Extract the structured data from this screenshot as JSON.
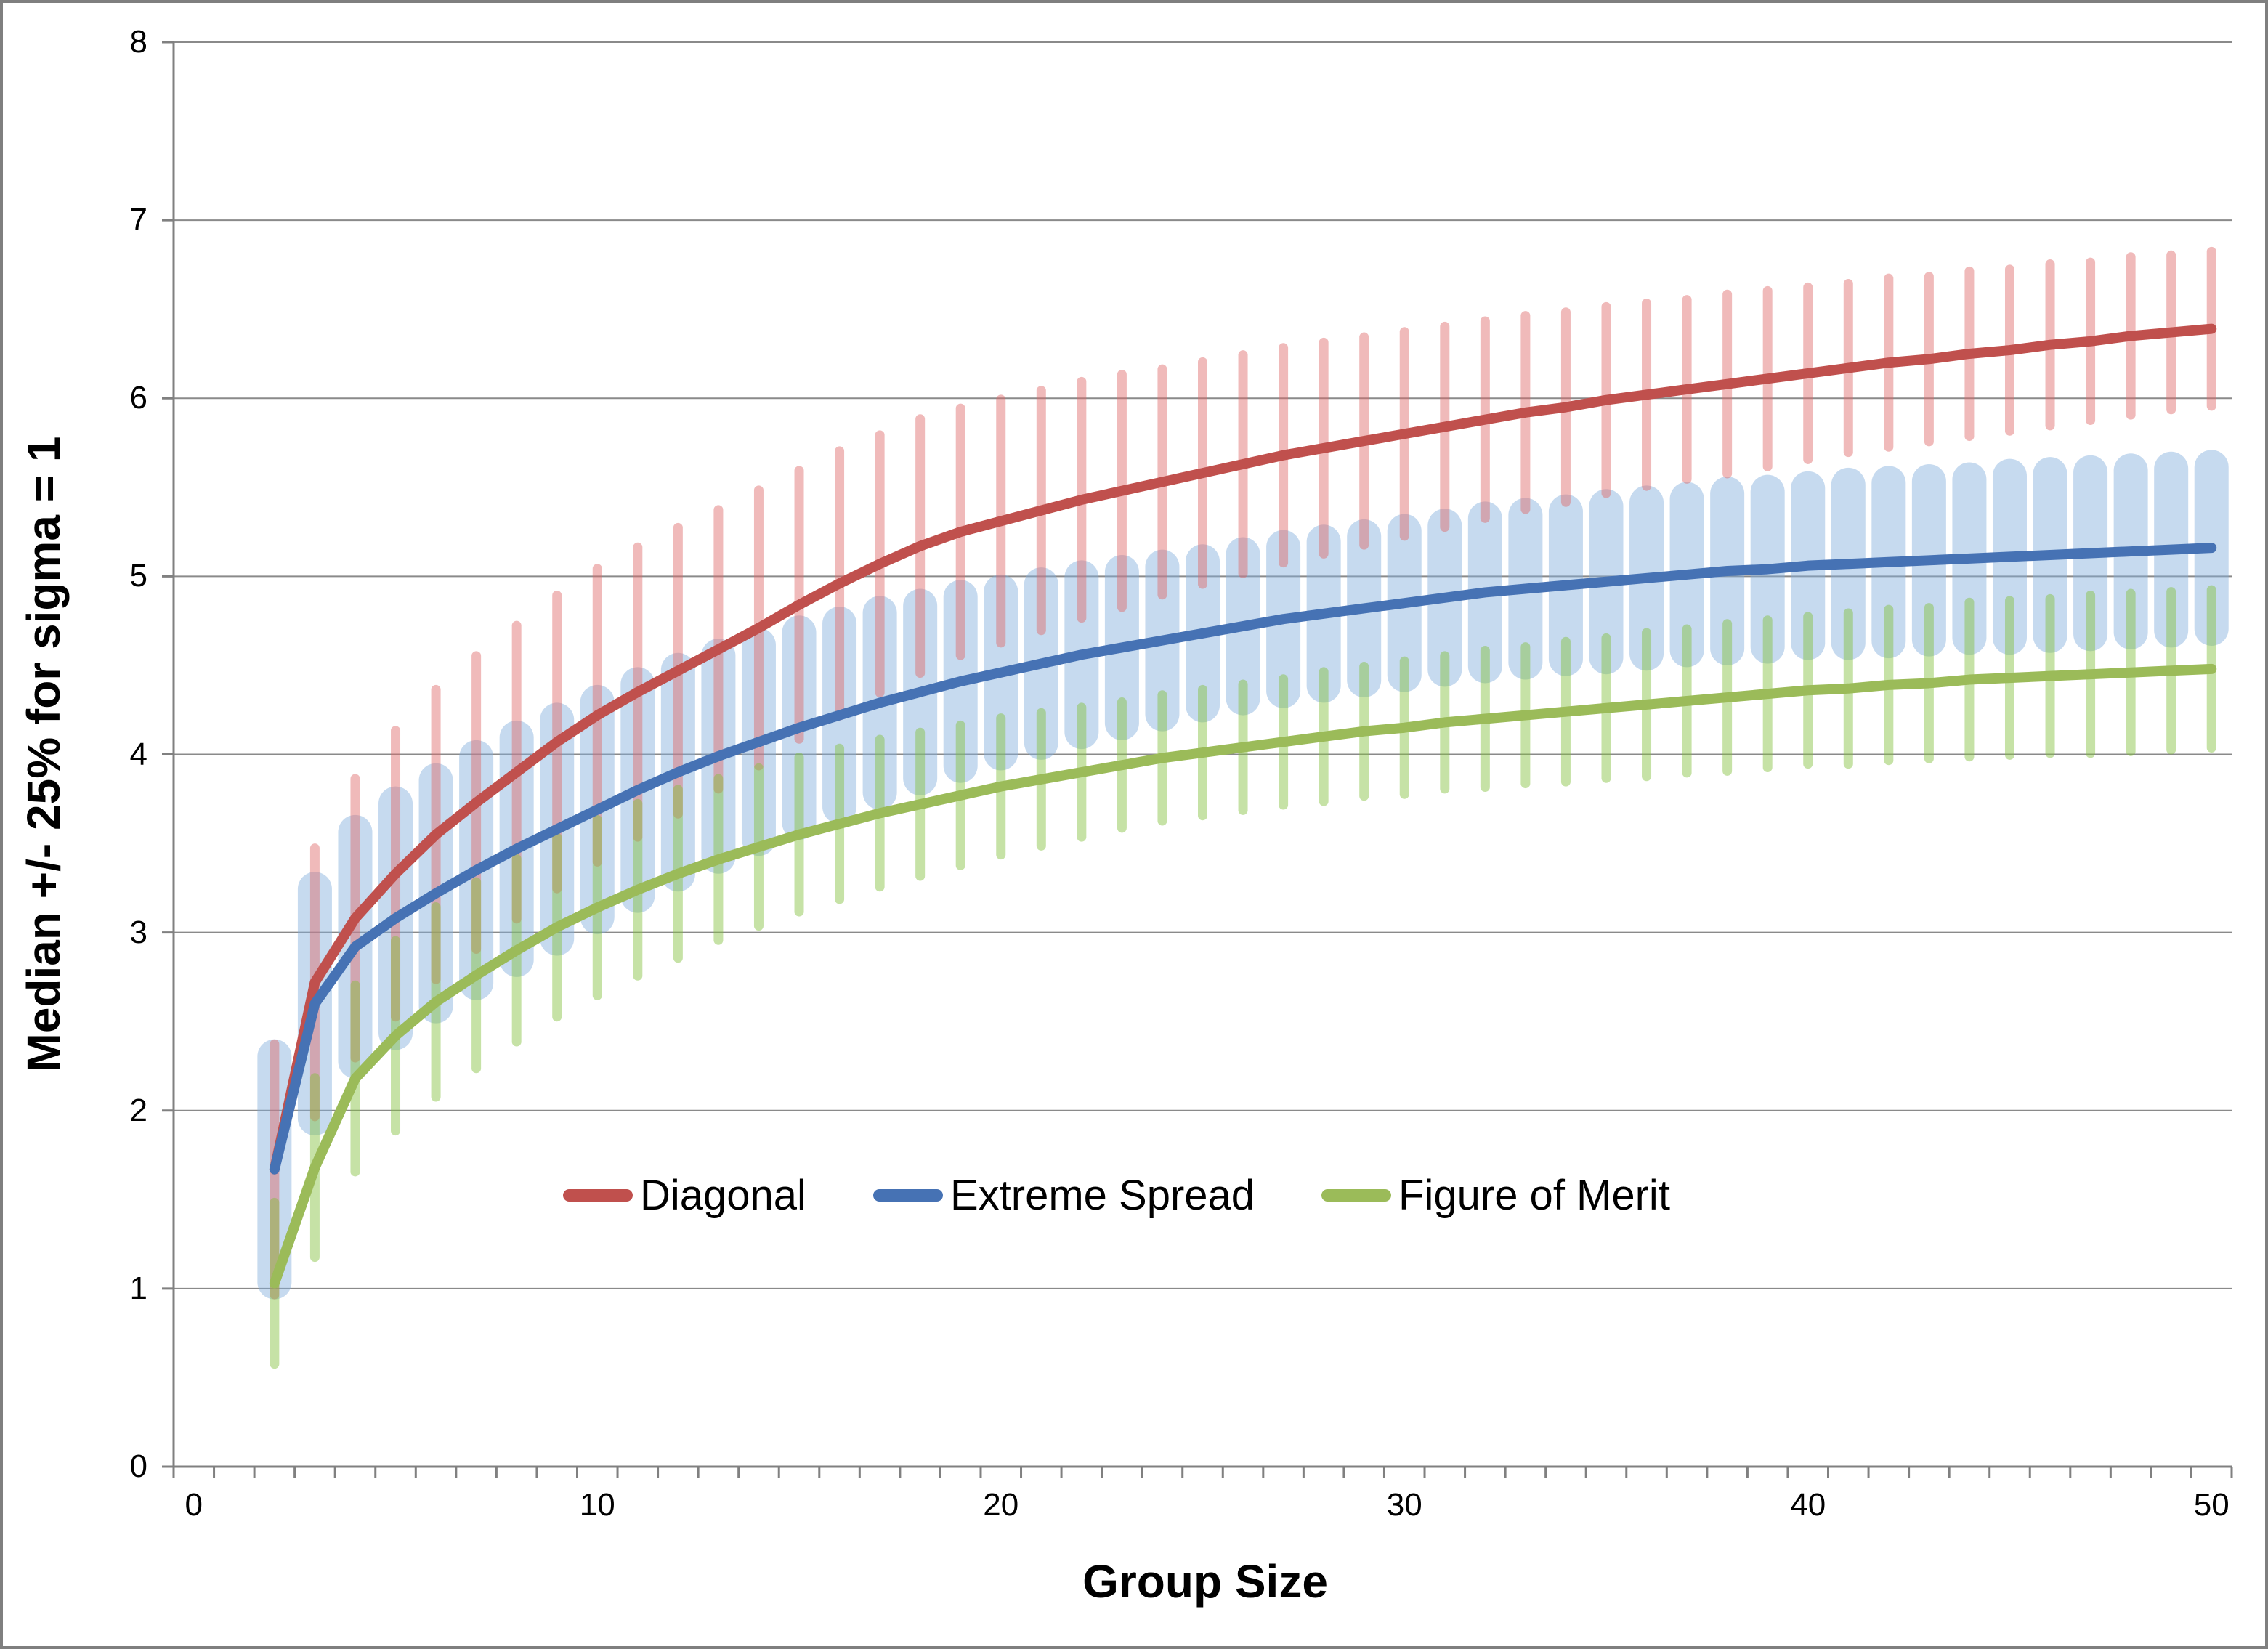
{
  "chart_data": {
    "type": "line",
    "title": "",
    "xlabel": "Group Size",
    "ylabel": "Median +/- 25% for sigma = 1",
    "xlim": [
      0,
      51
    ],
    "ylim": [
      0,
      8
    ],
    "x_tick_labels": [
      0,
      10,
      20,
      30,
      40,
      50
    ],
    "y_tick_labels": [
      0,
      1,
      2,
      3,
      4,
      5,
      6,
      7,
      8
    ],
    "x_minor_tick_step": 1,
    "grid": "horizontal",
    "legend_position": "inside-bottom-left",
    "axis_color": "#808080",
    "grid_color": "#8a8a8a",
    "tick_label_color": "#000000",
    "x": [
      2,
      3,
      4,
      5,
      6,
      7,
      8,
      9,
      10,
      11,
      12,
      13,
      14,
      15,
      16,
      17,
      18,
      19,
      20,
      21,
      22,
      23,
      24,
      25,
      26,
      27,
      28,
      29,
      30,
      31,
      32,
      33,
      34,
      35,
      36,
      37,
      38,
      39,
      40,
      41,
      42,
      43,
      44,
      45,
      46,
      47,
      48,
      49,
      50
    ],
    "series": [
      {
        "name": "Extreme Spread",
        "color": "#4672B4",
        "band_color": "rgba(128,172,219,0.45)",
        "band_thickness": "thick",
        "values": [
          1.67,
          2.6,
          2.92,
          3.08,
          3.22,
          3.35,
          3.47,
          3.58,
          3.69,
          3.8,
          3.9,
          3.99,
          4.07,
          4.15,
          4.22,
          4.29,
          4.35,
          4.41,
          4.46,
          4.51,
          4.56,
          4.6,
          4.64,
          4.68,
          4.72,
          4.76,
          4.79,
          4.82,
          4.85,
          4.88,
          4.91,
          4.93,
          4.95,
          4.97,
          4.99,
          5.01,
          5.03,
          5.04,
          5.06,
          5.07,
          5.08,
          5.09,
          5.1,
          5.11,
          5.12,
          5.13,
          5.14,
          5.15,
          5.16
        ],
        "lo": [
          0.94,
          1.86,
          2.18,
          2.34,
          2.49,
          2.62,
          2.75,
          2.87,
          2.99,
          3.11,
          3.23,
          3.33,
          3.43,
          3.52,
          3.61,
          3.69,
          3.77,
          3.84,
          3.91,
          3.97,
          4.03,
          4.08,
          4.13,
          4.18,
          4.22,
          4.26,
          4.29,
          4.32,
          4.35,
          4.38,
          4.4,
          4.42,
          4.44,
          4.45,
          4.47,
          4.49,
          4.5,
          4.51,
          4.53,
          4.53,
          4.54,
          4.55,
          4.56,
          4.56,
          4.57,
          4.58,
          4.59,
          4.6,
          4.61
        ],
        "hi": [
          2.4,
          3.34,
          3.66,
          3.82,
          3.95,
          4.08,
          4.19,
          4.29,
          4.39,
          4.49,
          4.57,
          4.65,
          4.71,
          4.78,
          4.83,
          4.89,
          4.93,
          4.98,
          5.01,
          5.05,
          5.09,
          5.12,
          5.15,
          5.18,
          5.22,
          5.26,
          5.29,
          5.32,
          5.35,
          5.38,
          5.42,
          5.44,
          5.46,
          5.49,
          5.51,
          5.53,
          5.56,
          5.57,
          5.59,
          5.61,
          5.62,
          5.63,
          5.64,
          5.66,
          5.67,
          5.68,
          5.69,
          5.7,
          5.71
        ]
      },
      {
        "name": "Diagonal",
        "color": "#C0504D",
        "band_color": "rgba(222,102,102,0.45)",
        "band_thickness": "thin",
        "values": [
          1.67,
          2.72,
          3.08,
          3.33,
          3.55,
          3.73,
          3.9,
          4.07,
          4.22,
          4.35,
          4.47,
          4.59,
          4.71,
          4.84,
          4.96,
          5.07,
          5.17,
          5.25,
          5.31,
          5.37,
          5.43,
          5.48,
          5.53,
          5.58,
          5.63,
          5.68,
          5.72,
          5.76,
          5.8,
          5.84,
          5.88,
          5.92,
          5.95,
          5.99,
          6.02,
          6.05,
          6.08,
          6.11,
          6.14,
          6.17,
          6.2,
          6.22,
          6.25,
          6.27,
          6.3,
          6.32,
          6.35,
          6.37,
          6.39
        ],
        "lo": [
          0.94,
          1.94,
          2.27,
          2.5,
          2.71,
          2.88,
          3.05,
          3.22,
          3.37,
          3.51,
          3.64,
          3.78,
          3.91,
          4.06,
          4.19,
          4.32,
          4.43,
          4.53,
          4.6,
          4.67,
          4.74,
          4.8,
          4.87,
          4.93,
          4.99,
          5.05,
          5.1,
          5.15,
          5.2,
          5.25,
          5.3,
          5.35,
          5.39,
          5.44,
          5.48,
          5.52,
          5.55,
          5.59,
          5.63,
          5.67,
          5.7,
          5.73,
          5.76,
          5.79,
          5.82,
          5.85,
          5.88,
          5.91,
          5.93
        ],
        "hi": [
          2.4,
          3.5,
          3.89,
          4.16,
          4.39,
          4.58,
          4.75,
          4.92,
          5.07,
          5.19,
          5.3,
          5.4,
          5.51,
          5.62,
          5.73,
          5.82,
          5.91,
          5.97,
          6.02,
          6.07,
          6.12,
          6.16,
          6.19,
          6.23,
          6.27,
          6.31,
          6.34,
          6.37,
          6.4,
          6.43,
          6.46,
          6.49,
          6.51,
          6.54,
          6.56,
          6.58,
          6.61,
          6.63,
          6.65,
          6.67,
          6.7,
          6.71,
          6.74,
          6.75,
          6.78,
          6.79,
          6.82,
          6.83,
          6.85
        ]
      },
      {
        "name": "Figure of Merit",
        "color": "#9BBB59",
        "band_color": "rgba(128,191,57,0.45)",
        "band_thickness": "thin",
        "values": [
          1.03,
          1.68,
          2.18,
          2.42,
          2.61,
          2.76,
          2.9,
          3.03,
          3.14,
          3.24,
          3.33,
          3.41,
          3.48,
          3.55,
          3.61,
          3.67,
          3.72,
          3.77,
          3.82,
          3.86,
          3.9,
          3.94,
          3.98,
          4.01,
          4.04,
          4.07,
          4.1,
          4.13,
          4.15,
          4.18,
          4.2,
          4.22,
          4.24,
          4.26,
          4.28,
          4.3,
          4.32,
          4.34,
          4.36,
          4.37,
          4.39,
          4.4,
          4.42,
          4.43,
          4.44,
          4.45,
          4.46,
          4.47,
          4.48
        ],
        "lo": [
          0.55,
          1.15,
          1.63,
          1.86,
          2.05,
          2.21,
          2.36,
          2.5,
          2.62,
          2.73,
          2.83,
          2.93,
          3.01,
          3.09,
          3.16,
          3.23,
          3.29,
          3.35,
          3.41,
          3.46,
          3.51,
          3.56,
          3.6,
          3.63,
          3.66,
          3.69,
          3.71,
          3.74,
          3.75,
          3.78,
          3.79,
          3.81,
          3.82,
          3.84,
          3.85,
          3.87,
          3.88,
          3.9,
          3.92,
          3.92,
          3.94,
          3.95,
          3.96,
          3.97,
          3.98,
          3.98,
          3.99,
          4.0,
          4.01
        ],
        "hi": [
          1.51,
          2.21,
          2.73,
          2.98,
          3.17,
          3.31,
          3.44,
          3.56,
          3.66,
          3.75,
          3.83,
          3.89,
          3.95,
          4.01,
          4.06,
          4.11,
          4.15,
          4.19,
          4.23,
          4.26,
          4.29,
          4.32,
          4.36,
          4.39,
          4.42,
          4.45,
          4.49,
          4.52,
          4.55,
          4.58,
          4.61,
          4.63,
          4.66,
          4.68,
          4.71,
          4.73,
          4.76,
          4.78,
          4.8,
          4.82,
          4.84,
          4.85,
          4.88,
          4.89,
          4.9,
          4.92,
          4.93,
          4.94,
          4.95
        ]
      }
    ],
    "legend_order": [
      "Diagonal",
      "Extreme Spread",
      "Figure of Merit"
    ]
  }
}
